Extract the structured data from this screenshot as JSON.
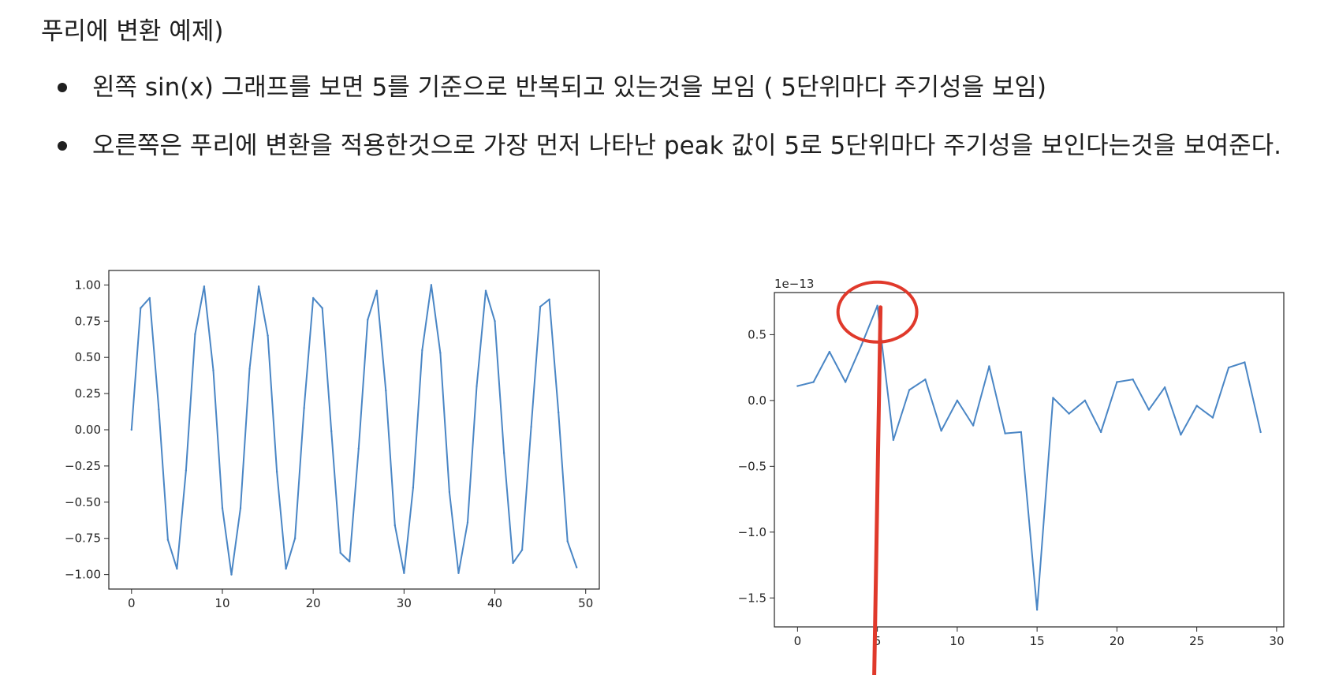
{
  "heading": "푸리에 변환 예제)",
  "bullets": [
    "왼쪽 sin(x) 그래프를 보면 5를 기준으로 반복되고 있는것을 보임 ( 5단위마다 주기성을 보임)",
    "오른쪽은 푸리에 변환을 적용한것으로 가장 먼저 나타난 peak 값이 5로 5단위마다 주기성을 보인다는것을 보여준다."
  ],
  "colors": {
    "line": "#4a86c5",
    "highlight": "#e0392b",
    "text": "#1f1f1f"
  },
  "chart_data": [
    {
      "type": "line",
      "title": "",
      "xlabel": "",
      "ylabel": "",
      "grid": false,
      "xlim": [
        -2.5,
        51.5
      ],
      "ylim": [
        -1.1,
        1.1
      ],
      "xticks": [
        0,
        10,
        20,
        30,
        40,
        50
      ],
      "xtick_labels": [
        "0",
        "10",
        "20",
        "30",
        "40",
        "50"
      ],
      "yticks": [
        1,
        0.75,
        0.5,
        0.25,
        0,
        -0.25,
        -0.5,
        -0.75,
        -1
      ],
      "ytick_labels": [
        "1.00",
        "0.75",
        "0.50",
        "0.25",
        "0.00",
        "−0.25",
        "−0.50",
        "−0.75",
        "−1.00"
      ],
      "x": [
        0,
        1,
        2,
        3,
        4,
        5,
        6,
        7,
        8,
        9,
        10,
        11,
        12,
        13,
        14,
        15,
        16,
        17,
        18,
        19,
        20,
        21,
        22,
        23,
        24,
        25,
        26,
        27,
        28,
        29,
        30,
        31,
        32,
        33,
        34,
        35,
        36,
        37,
        38,
        39,
        40,
        41,
        42,
        43,
        44,
        45,
        46,
        47,
        48,
        49
      ],
      "y": [
        0,
        0.84,
        0.91,
        0.14,
        -0.76,
        -0.96,
        -0.28,
        0.66,
        0.99,
        0.41,
        -0.54,
        -1.0,
        -0.54,
        0.42,
        0.99,
        0.65,
        -0.29,
        -0.96,
        -0.75,
        0.15,
        0.91,
        0.84,
        -0.01,
        -0.85,
        -0.91,
        -0.13,
        0.76,
        0.96,
        0.27,
        -0.66,
        -0.99,
        -0.4,
        0.55,
        1.0,
        0.53,
        -0.43,
        -0.99,
        -0.64,
        0.3,
        0.96,
        0.75,
        -0.16,
        -0.92,
        -0.83,
        0.02,
        0.85,
        0.9,
        0.12,
        -0.77,
        -0.95
      ]
    },
    {
      "type": "line",
      "title": "",
      "xlabel": "",
      "ylabel": "",
      "grid": false,
      "offset_label": "1e−13",
      "xlim": [
        -1.45,
        30.45
      ],
      "ylim": [
        -1.72,
        0.82
      ],
      "xticks": [
        0,
        5,
        10,
        15,
        20,
        25,
        30
      ],
      "xtick_labels": [
        "0",
        "5",
        "10",
        "15",
        "20",
        "25",
        "30"
      ],
      "yticks": [
        0.5,
        0,
        -0.5,
        -1,
        -1.5
      ],
      "ytick_labels": [
        "0.5",
        "0.0",
        "−0.5",
        "−1.0",
        "−1.5"
      ],
      "x": [
        0,
        1,
        2,
        3,
        4,
        5,
        6,
        7,
        8,
        9,
        10,
        11,
        12,
        13,
        14,
        15,
        16,
        17,
        18,
        19,
        20,
        21,
        22,
        23,
        24,
        25,
        26,
        27,
        28,
        29
      ],
      "y": [
        0.11,
        0.14,
        0.37,
        0.14,
        0.42,
        0.72,
        -0.3,
        0.08,
        0.16,
        -0.23,
        0.0,
        -0.19,
        0.26,
        -0.25,
        -0.24,
        -1.59,
        0.02,
        -0.1,
        0.0,
        -0.24,
        0.14,
        0.16,
        -0.07,
        0.1,
        -0.26,
        -0.04,
        -0.13,
        0.25,
        0.29,
        -0.24
      ],
      "annotation": {
        "type": "circle-and-arrow",
        "marks": "peak",
        "x": 5,
        "y": 0.72
      }
    }
  ]
}
